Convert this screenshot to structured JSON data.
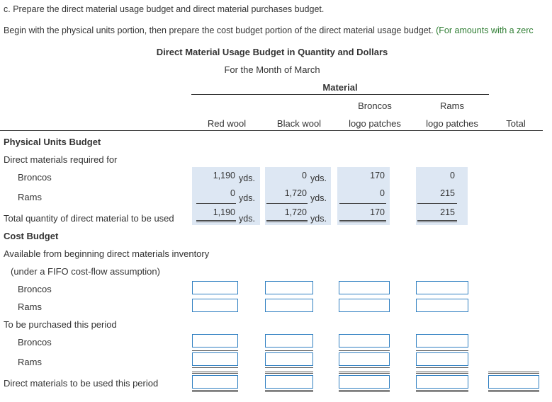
{
  "instructions": {
    "line1": "c. Prepare the direct material usage budget and direct material purchases budget.",
    "line2_main": "Begin with the physical units portion, then prepare the cost budget portion of the direct material usage budget.",
    "line2_note": "(For amounts with a zerc"
  },
  "title": {
    "main": "Direct Material Usage Budget in Quantity and Dollars",
    "period": "For the Month of March"
  },
  "headers": {
    "material": "Material",
    "broncos_top": "Broncos",
    "rams_top": "Rams",
    "red_wool": "Red wool",
    "black_wool": "Black wool",
    "broncos_logo": "logo patches",
    "rams_logo": "logo patches",
    "total": "Total"
  },
  "physical": {
    "section_title": "Physical Units Budget",
    "required_label": "Direct materials required for",
    "broncos_label": "Broncos",
    "rams_label": "Rams",
    "total_label": "Total quantity of direct material to be used",
    "unit": "yds.",
    "broncos": {
      "red": "1,190",
      "black": "0",
      "bpatch": "170",
      "rpatch": "0"
    },
    "rams": {
      "red": "0",
      "black": "1,720",
      "bpatch": "0",
      "rpatch": "215"
    },
    "total": {
      "red": "1,190",
      "black": "1,720",
      "bpatch": "170",
      "rpatch": "215"
    }
  },
  "cost": {
    "section_title": "Cost Budget",
    "available_label": "Available from beginning direct materials inventory",
    "fifo_label": "(under a FIFO cost-flow assumption)",
    "broncos_label": "Broncos",
    "rams_label": "Rams",
    "purchased_label": "To be purchased this period",
    "broncos2_label": "Broncos",
    "rams2_label": "Rams",
    "used_label": "Direct materials to be used this period"
  }
}
